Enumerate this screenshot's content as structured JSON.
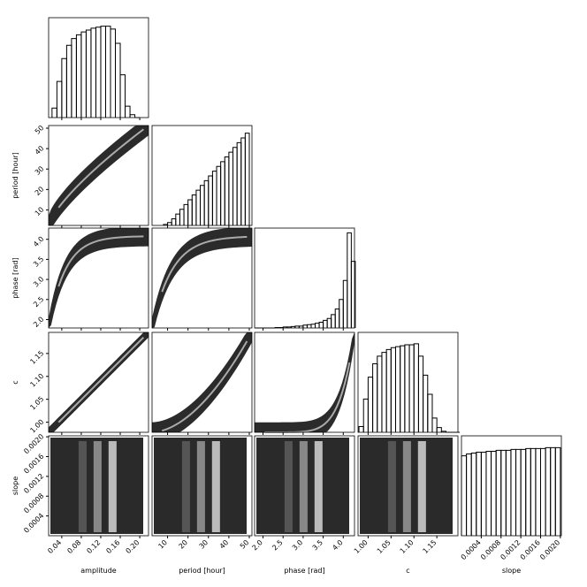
{
  "chart_data": [
    {
      "type": "histogram",
      "label": "amplitude",
      "bins": [
        0.02,
        0.03,
        0.04,
        0.05,
        0.06,
        0.07,
        0.08,
        0.09,
        0.1,
        0.11,
        0.12,
        0.13,
        0.14,
        0.15,
        0.16,
        0.17,
        0.18,
        0.19,
        0.2
      ],
      "values": [
        10,
        38,
        62,
        76,
        83,
        87,
        90,
        92,
        94,
        95,
        96,
        96,
        93,
        78,
        45,
        12,
        3,
        0
      ],
      "xlim": [
        0.013,
        0.218
      ],
      "ylim": [
        0,
        105
      ],
      "xticks": [
        0.04,
        0.08,
        0.12,
        0.16,
        {
          "value": 0.2,
          "label": "0.20"
        }
      ]
    },
    {
      "type": "histogram",
      "label": "period [hour]",
      "bins": [
        8,
        10,
        12,
        14,
        16,
        18,
        20,
        22,
        24,
        26,
        28,
        30,
        32,
        34,
        36,
        38,
        40,
        42,
        44,
        46,
        48,
        50
      ],
      "values": [
        1,
        3,
        7,
        12,
        17,
        22,
        27,
        32,
        37,
        42,
        47,
        52,
        57,
        62,
        67,
        72,
        77,
        82,
        87,
        92,
        97
      ],
      "xlim": [
        2.4,
        51.3
      ],
      "ylim": [
        0,
        105
      ],
      "xticks": [
        10,
        20,
        30,
        40,
        50
      ]
    },
    {
      "type": "histogram",
      "label": "phase [rad]",
      "bins": [
        1.8,
        1.9,
        2.0,
        2.1,
        2.2,
        2.3,
        2.4,
        2.5,
        2.6,
        2.7,
        2.8,
        2.9,
        3.0,
        3.1,
        3.2,
        3.3,
        3.4,
        3.5,
        3.6,
        3.7,
        3.8,
        3.9,
        4.0,
        4.1,
        4.2,
        4.3
      ],
      "values": [
        0,
        0,
        0,
        0,
        0,
        0.5,
        0.5,
        1,
        1,
        1.5,
        2,
        2,
        3,
        3.5,
        4,
        5,
        6,
        8,
        10,
        14,
        20,
        30,
        50,
        100,
        70
      ],
      "xlim": [
        1.79,
        4.28
      ],
      "ylim": [
        0,
        105
      ],
      "xticks": [
        {
          "value": 2,
          "label": "2.0"
        },
        2.5,
        {
          "value": 3,
          "label": "3.0"
        },
        3.5,
        {
          "value": 4,
          "label": "4.0"
        }
      ]
    },
    {
      "type": "histogram",
      "label": "c",
      "bins": [
        0.98,
        0.99,
        1.0,
        1.01,
        1.02,
        1.03,
        1.04,
        1.05,
        1.06,
        1.07,
        1.08,
        1.09,
        1.1,
        1.11,
        1.12,
        1.13,
        1.14,
        1.15,
        1.16,
        1.17,
        1.18,
        1.19,
        1.2
      ],
      "values": [
        6,
        35,
        58,
        72,
        80,
        84,
        87,
        89,
        90,
        91,
        92,
        92,
        93,
        80,
        60,
        40,
        15,
        5,
        1,
        0,
        0,
        0
      ],
      "xlim": [
        0.978,
        1.196
      ],
      "ylim": [
        0,
        105
      ],
      "xticks": [
        {
          "value": 1,
          "label": "1.00"
        },
        1.05,
        {
          "value": 1.1,
          "label": "1.10"
        },
        1.15
      ]
    },
    {
      "type": "histogram",
      "label": "slope",
      "bins": [
        0,
        0.0001,
        0.0002,
        0.0003,
        0.0004,
        0.0005,
        0.0006,
        0.0007,
        0.0008,
        0.0009,
        0.001,
        0.0011,
        0.0012,
        0.0013,
        0.0014,
        0.0015,
        0.0016,
        0.0017,
        0.0018,
        0.0019,
        0.002
      ],
      "values": [
        88,
        90,
        91,
        92,
        92,
        93,
        93,
        94,
        94,
        94,
        95,
        95,
        95,
        96,
        96,
        96,
        96,
        97,
        97,
        97
      ],
      "xlim": [
        0,
        0.00202
      ],
      "ylim": [
        0,
        110
      ],
      "xticks": [
        0.0004,
        0.0008,
        0.0012,
        0.0016,
        {
          "value": 0.002,
          "label": "0.0020"
        }
      ]
    }
  ]
}
